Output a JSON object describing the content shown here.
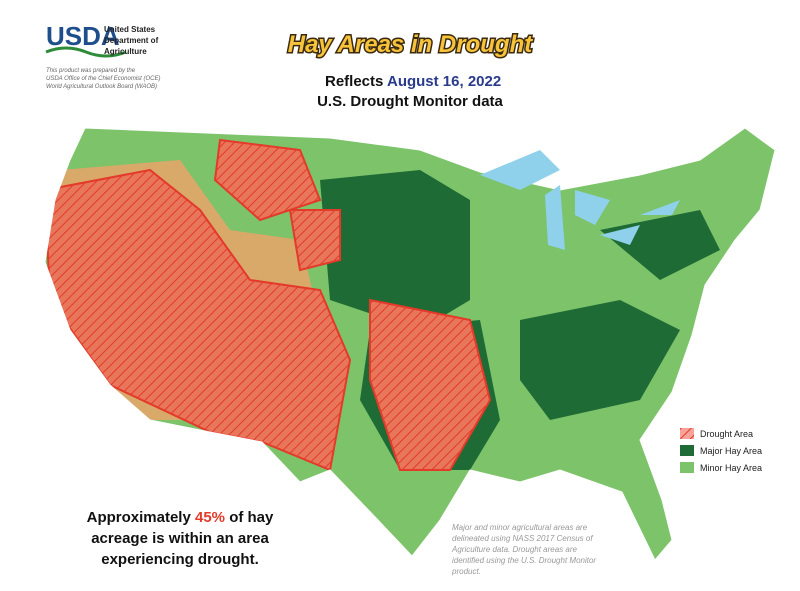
{
  "logo": {
    "name": "USDA",
    "agency": [
      "United States",
      "Department of",
      "Agriculture"
    ],
    "note": [
      "This product was prepared by the",
      "USDA Office of the Chief Economist (OCE)",
      "World Agricultural Outlook Board (WAOB)"
    ]
  },
  "header": {
    "title": "Hay Areas in Drought",
    "prefix": "Reflects",
    "date": "August 16, 2022",
    "source": "U.S. Drought Monitor data"
  },
  "legend": [
    {
      "label": "Drought Area",
      "color": "#f7a29a"
    },
    {
      "label": "Major Hay Area",
      "color": "#1f6b35"
    },
    {
      "label": "Minor Hay Area",
      "color": "#7cc36a"
    }
  ],
  "summary": {
    "before": "Approximately",
    "share": "45%",
    "after": "of hay",
    "line2": "acreage is within an area",
    "line3": "experiencing drought."
  },
  "footnote": [
    "Major and minor agricultural areas are",
    "delineated using NASS 2017 Census of",
    "Agriculture data.  Drought areas are",
    "identified using the U.S. Drought Monitor",
    "product."
  ]
}
